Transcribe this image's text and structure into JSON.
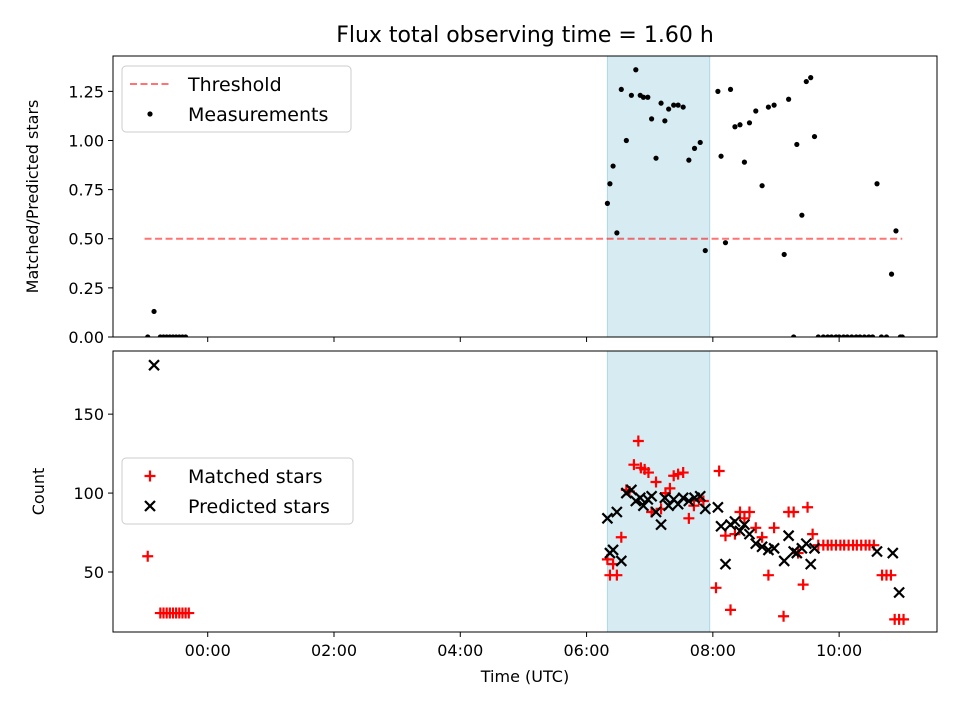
{
  "chart_data": [
    {
      "type": "scatter",
      "title": "Flux total observing time = 1.60 h",
      "xlabel": "",
      "ylabel": "Matched/Predicted stars",
      "xlim": [
        -1.5,
        11.55
      ],
      "ylim": [
        0,
        1.43
      ],
      "yticks": [
        0.0,
        0.25,
        0.5,
        0.75,
        1.0,
        1.25
      ],
      "ytick_labels": [
        "0.00",
        "0.25",
        "0.50",
        "0.75",
        "1.00",
        "1.25"
      ],
      "grid": false,
      "legend_position": "upper-left",
      "shaded_region": {
        "x": [
          6.33,
          7.95
        ],
        "color": "#add8e6"
      },
      "threshold": {
        "name": "Threshold",
        "value": 0.5,
        "x": [
          -1.0,
          11.0
        ],
        "color": "#ff0000",
        "style": "dashed"
      },
      "series": [
        {
          "name": "Measurements",
          "color": "#000000",
          "marker": "dot",
          "x": [
            -0.95,
            -0.85,
            -0.75,
            -0.7,
            -0.65,
            -0.6,
            -0.55,
            -0.5,
            -0.45,
            -0.4,
            -0.35,
            6.33,
            6.37,
            6.42,
            6.48,
            6.55,
            6.63,
            6.71,
            6.78,
            6.85,
            6.9,
            6.97,
            7.03,
            7.1,
            7.18,
            7.24,
            7.3,
            7.38,
            7.45,
            7.53,
            7.62,
            7.71,
            7.8,
            7.88,
            8.08,
            8.13,
            8.2,
            8.28,
            8.35,
            8.43,
            8.5,
            8.58,
            8.68,
            8.78,
            8.88,
            8.97,
            9.13,
            9.2,
            9.28,
            9.33,
            9.41,
            9.48,
            9.55,
            9.61,
            9.67,
            9.75,
            9.82,
            9.88,
            9.95,
            10.0,
            10.07,
            10.13,
            10.2,
            10.27,
            10.33,
            10.4,
            10.47,
            10.53,
            10.6,
            10.67,
            10.75,
            10.83,
            10.9,
            10.97,
            11.0
          ],
          "y": [
            0.0,
            0.13,
            0.0,
            0.0,
            0.0,
            0.0,
            0.0,
            0.0,
            0.0,
            0.0,
            0.0,
            0.68,
            0.78,
            0.87,
            0.53,
            1.26,
            1.0,
            1.23,
            1.36,
            1.23,
            1.22,
            1.22,
            1.11,
            0.91,
            1.19,
            1.1,
            1.16,
            1.18,
            1.18,
            1.17,
            0.9,
            0.96,
            0.99,
            0.44,
            1.25,
            0.92,
            0.48,
            1.26,
            1.07,
            1.08,
            0.89,
            1.09,
            1.15,
            0.77,
            1.17,
            1.18,
            0.42,
            1.21,
            0.0,
            0.98,
            0.62,
            1.3,
            1.32,
            1.02,
            0.0,
            0.0,
            0.0,
            0.0,
            0.0,
            0.0,
            0.0,
            0.0,
            0.0,
            0.0,
            0.0,
            0.0,
            0.0,
            0.0,
            0.78,
            0.0,
            0.0,
            0.32,
            0.54,
            0.0,
            0.0
          ]
        }
      ]
    },
    {
      "type": "scatter",
      "title": "",
      "xlabel": "Time (UTC)",
      "ylabel": "Count",
      "xlim": [
        -1.5,
        11.55
      ],
      "ylim": [
        12,
        190
      ],
      "xticks": [
        0,
        2,
        4,
        6,
        8,
        10
      ],
      "xtick_labels": [
        "00:00",
        "02:00",
        "04:00",
        "06:00",
        "08:00",
        "10:00"
      ],
      "yticks": [
        50,
        100,
        150
      ],
      "ytick_labels": [
        "50",
        "100",
        "150"
      ],
      "grid": false,
      "legend_position": "center-left",
      "shaded_region": {
        "x": [
          6.33,
          7.95
        ],
        "color": "#add8e6"
      },
      "series": [
        {
          "name": "Matched stars",
          "color": "#ff0000",
          "marker": "plus",
          "x": [
            -0.95,
            -0.75,
            -0.7,
            -0.65,
            -0.6,
            -0.55,
            -0.5,
            -0.45,
            -0.4,
            -0.35,
            -0.3,
            6.33,
            6.37,
            6.42,
            6.48,
            6.55,
            6.63,
            6.68,
            6.75,
            6.82,
            6.86,
            6.92,
            6.98,
            7.03,
            7.1,
            7.18,
            7.25,
            7.32,
            7.38,
            7.45,
            7.53,
            7.62,
            7.7,
            7.78,
            7.85,
            8.05,
            8.1,
            8.2,
            8.28,
            8.35,
            8.43,
            8.5,
            8.58,
            8.68,
            8.78,
            8.88,
            8.97,
            9.12,
            9.2,
            9.28,
            9.35,
            9.43,
            9.5,
            9.58,
            9.67,
            9.75,
            9.82,
            9.88,
            9.95,
            10.02,
            10.08,
            10.15,
            10.22,
            10.28,
            10.35,
            10.42,
            10.48,
            10.55,
            10.68,
            10.75,
            10.82,
            10.88,
            10.95,
            11.02
          ],
          "y": [
            60,
            24,
            24,
            24,
            24,
            24,
            24,
            24,
            24,
            24,
            24,
            58,
            48,
            55,
            48,
            72,
            102,
            101,
            118,
            133,
            116,
            115,
            113,
            88,
            107,
            90,
            100,
            103,
            111,
            112,
            113,
            84,
            92,
            96,
            95,
            40,
            114,
            73,
            26,
            74,
            88,
            84,
            88,
            78,
            72,
            48,
            78,
            22,
            88,
            88,
            62,
            42,
            91,
            74,
            67,
            67,
            67,
            67,
            67,
            67,
            67,
            67,
            67,
            67,
            67,
            67,
            67,
            67,
            48,
            48,
            48,
            20,
            20,
            20
          ]
        },
        {
          "name": "Predicted stars",
          "color": "#000000",
          "marker": "x",
          "x": [
            -0.85,
            6.33,
            6.37,
            6.42,
            6.48,
            6.55,
            6.63,
            6.71,
            6.78,
            6.85,
            6.9,
            6.97,
            7.03,
            7.1,
            7.18,
            7.24,
            7.3,
            7.38,
            7.45,
            7.53,
            7.62,
            7.71,
            7.8,
            7.88,
            8.08,
            8.13,
            8.2,
            8.28,
            8.35,
            8.43,
            8.5,
            8.58,
            8.68,
            8.78,
            8.88,
            8.97,
            9.13,
            9.2,
            9.28,
            9.33,
            9.41,
            9.48,
            9.55,
            9.61,
            10.6,
            10.85,
            10.95
          ],
          "y": [
            181,
            84,
            62,
            64,
            88,
            57,
            100,
            102,
            95,
            97,
            92,
            96,
            98,
            88,
            80,
            97,
            92,
            96,
            93,
            97,
            95,
            97,
            98,
            90,
            91,
            79,
            55,
            80,
            82,
            76,
            80,
            74,
            68,
            66,
            64,
            65,
            57,
            73,
            63,
            62,
            65,
            68,
            55,
            65,
            63,
            62,
            37
          ]
        }
      ]
    }
  ]
}
